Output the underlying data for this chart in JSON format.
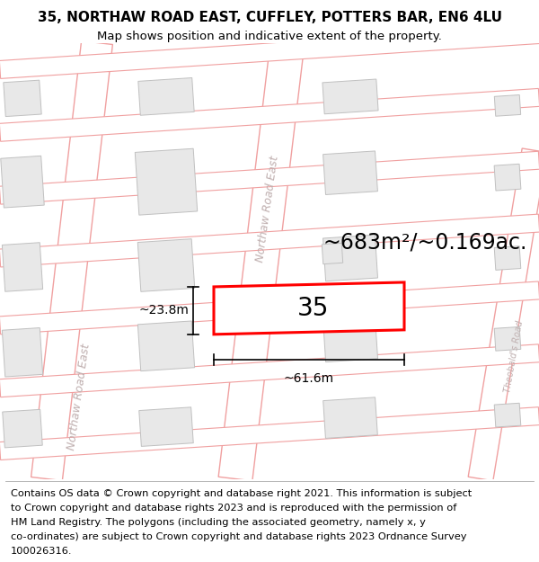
{
  "title_line1": "35, NORTHAW ROAD EAST, CUFFLEY, POTTERS BAR, EN6 4LU",
  "title_line2": "Map shows position and indicative extent of the property.",
  "property_number": "35",
  "area_text": "~683m²/~0.169ac.",
  "dim_width": "~61.6m",
  "dim_height": "~23.8m",
  "road_label_upper": "Northaw Road East",
  "road_label_lower": "Northaw Road East",
  "road_label_right": "Theobald's Road",
  "map_bg": "#f8f8f8",
  "building_color": "#e8e8e8",
  "building_edge": "#c0c0c0",
  "road_line_color": "#f0a0a0",
  "road_fill": "#ffffff",
  "road_border_color": "#d08080",
  "property_edge": "#ff0000",
  "property_fill": "#ffffff",
  "title_fontsize": 11,
  "subtitle_fontsize": 9.5,
  "footer_fontsize": 8.2,
  "area_fontsize": 17,
  "dim_fontsize": 10,
  "road_label_fontsize": 9,
  "number_fontsize": 20,
  "footer_lines": [
    "Contains OS data © Crown copyright and database right 2021. This information is subject",
    "to Crown copyright and database rights 2023 and is reproduced with the permission of",
    "HM Land Registry. The polygons (including the associated geometry, namely x, y",
    "co-ordinates) are subject to Crown copyright and database rights 2023 Ordnance Survey",
    "100026316."
  ]
}
